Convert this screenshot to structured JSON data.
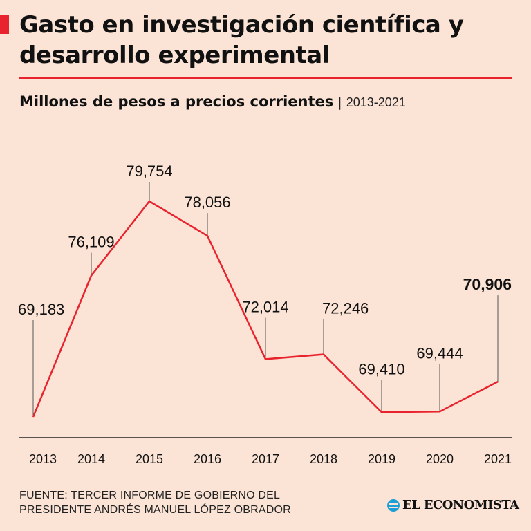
{
  "header": {
    "title": "Gasto en investigación científica y desarrollo experimental",
    "subtitle_main": "Millones de pesos a precios corrientes",
    "subtitle_separator": "|",
    "subtitle_range": "2013-2021"
  },
  "colors": {
    "background": "#fbe4d6",
    "accent": "#e8232d",
    "line": "#e8232d",
    "text": "#111111",
    "leader": "#555555",
    "axis": "#222222",
    "brand_logo": "#1b9fd6"
  },
  "chart_data": {
    "type": "line",
    "title": "Gasto en investigación científica y desarrollo experimental",
    "subtitle": "Millones de pesos a precios corrientes | 2013-2021",
    "xlabel": "",
    "ylabel": "",
    "categories": [
      "2013",
      "2014",
      "2015",
      "2016",
      "2017",
      "2018",
      "2019",
      "2020",
      "2021"
    ],
    "series": [
      {
        "values": [
          69183,
          76109,
          79754,
          78056,
          72014,
          72246,
          69410,
          69444,
          70906
        ],
        "labels": [
          "69,183",
          "76,109",
          "79,754",
          "78,056",
          "72,014",
          "72,246",
          "69,410",
          "69,444",
          "70,906"
        ],
        "highlight_index": 8
      }
    ],
    "y_axis_visible": false,
    "grid": false
  },
  "footer": {
    "source_line1": "FUENTE: TERCER INFORME DE GOBIERNO DEL",
    "source_line2": "PRESIDENTE ANDRÉS MANUEL LÓPEZ OBRADOR",
    "brand": "EL ECONOMISTA",
    "brand_icon": "el-economista-logo-icon"
  }
}
